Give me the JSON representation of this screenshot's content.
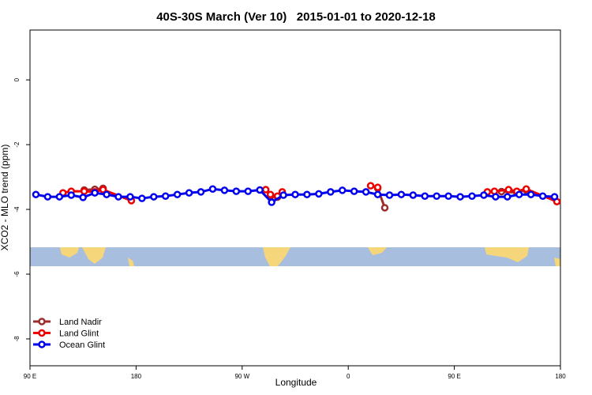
{
  "chart_data": {
    "type": "line",
    "title": "40S-30S March (Ver 10)   2015-01-01 to 2020-12-18",
    "x_label": "Longitude",
    "y_label": "XCO2 - MLO trend (ppm)",
    "xlim": [
      90,
      540
    ],
    "ylim": [
      -8.83,
      1.54
    ],
    "xticks": [
      {
        "value": 90,
        "label": "90 E"
      },
      180,
      {
        "value": 270,
        "label": "90 W"
      },
      0,
      {
        "value": 450,
        "label": "90 E"
      },
      {
        "value": 540,
        "label": "180"
      }
    ],
    "yticks": [
      0,
      -2,
      -4,
      -6,
      -8
    ],
    "legend": "bottomleft",
    "series": [
      {
        "name": "Land Nadir",
        "color": "#9b2d2d",
        "x": [
          136,
          145,
          152,
          null,
          294,
          300,
          null,
          385,
          391,
          null,
          490,
          503,
          511
        ],
        "values": [
          -3.4,
          -3.38,
          -3.35,
          null,
          -3.6,
          -3.62,
          null,
          -3.35,
          -3.95,
          null,
          -3.45,
          -3.48,
          -3.4
        ]
      },
      {
        "name": "Land Glint",
        "color": "#ee0000",
        "x": [
          118,
          125,
          136,
          145,
          152,
          176,
          null,
          290,
          294,
          300,
          304,
          null,
          379,
          385,
          null,
          478,
          484,
          496,
          503,
          511,
          537
        ],
        "values": [
          -3.49,
          -3.44,
          -3.44,
          -3.46,
          -3.39,
          -3.73,
          null,
          -3.39,
          -3.54,
          -3.59,
          -3.46,
          null,
          -3.27,
          -3.32,
          null,
          -3.46,
          -3.44,
          -3.39,
          -3.44,
          -3.37,
          -3.76
        ]
      },
      {
        "name": "Ocean Glint",
        "color": "#0000ee",
        "x": [
          95,
          105,
          115,
          125,
          135,
          145,
          155,
          165,
          175,
          185,
          195,
          205,
          215,
          225,
          235,
          245,
          255,
          265,
          275,
          285,
          295,
          305,
          315,
          325,
          335,
          345,
          355,
          365,
          375,
          385,
          395,
          405,
          415,
          425,
          435,
          445,
          455,
          465,
          475,
          485,
          495,
          505,
          515,
          525,
          535
        ],
        "values": [
          -3.54,
          -3.61,
          -3.61,
          -3.56,
          -3.63,
          -3.49,
          -3.54,
          -3.61,
          -3.61,
          -3.66,
          -3.61,
          -3.59,
          -3.54,
          -3.49,
          -3.46,
          -3.37,
          -3.41,
          -3.44,
          -3.44,
          -3.4,
          -3.78,
          -3.56,
          -3.54,
          -3.54,
          -3.52,
          -3.46,
          -3.41,
          -3.44,
          -3.46,
          -3.54,
          -3.56,
          -3.54,
          -3.56,
          -3.59,
          -3.59,
          -3.59,
          -3.61,
          -3.59,
          -3.56,
          -3.61,
          -3.61,
          -3.54,
          -3.54,
          -3.59,
          -3.61
        ]
      }
    ]
  }
}
